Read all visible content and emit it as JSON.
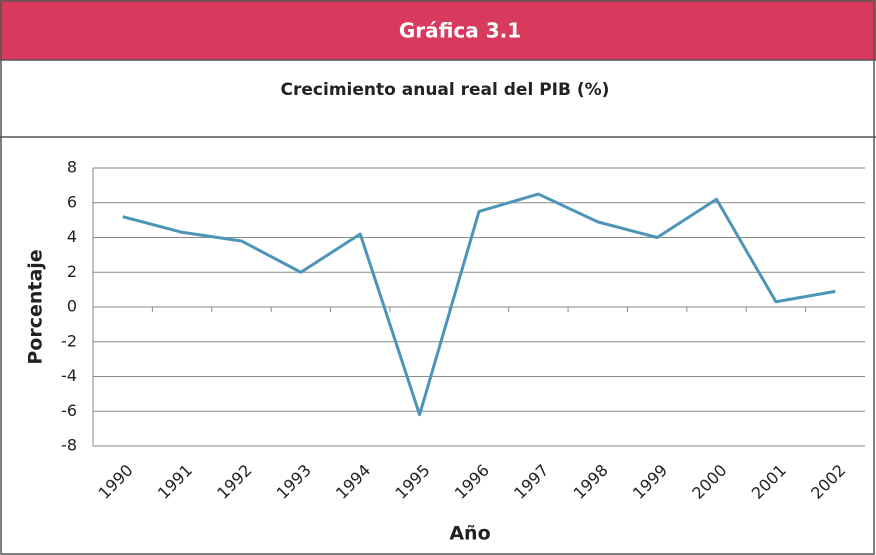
{
  "chart_data": {
    "type": "line",
    "header": "Gráfica 3.1",
    "title": "Crecimiento anual real del PIB (%)",
    "x_label": "Año",
    "y_label": "Porcentaje",
    "categories": [
      "1990",
      "1991",
      "1992",
      "1993",
      "1994",
      "1995",
      "1996",
      "1997",
      "1998",
      "1999",
      "2000",
      "2001",
      "2002"
    ],
    "values": [
      5.2,
      4.3,
      3.8,
      2.0,
      4.2,
      -6.2,
      5.5,
      6.5,
      4.9,
      4.0,
      6.2,
      0.3,
      0.9
    ],
    "color": "#4d95b8",
    "ylim": [
      -8,
      8
    ],
    "yticks": [
      -8,
      -6,
      -4,
      -2,
      0,
      2,
      4,
      6,
      8
    ],
    "grid": true
  }
}
